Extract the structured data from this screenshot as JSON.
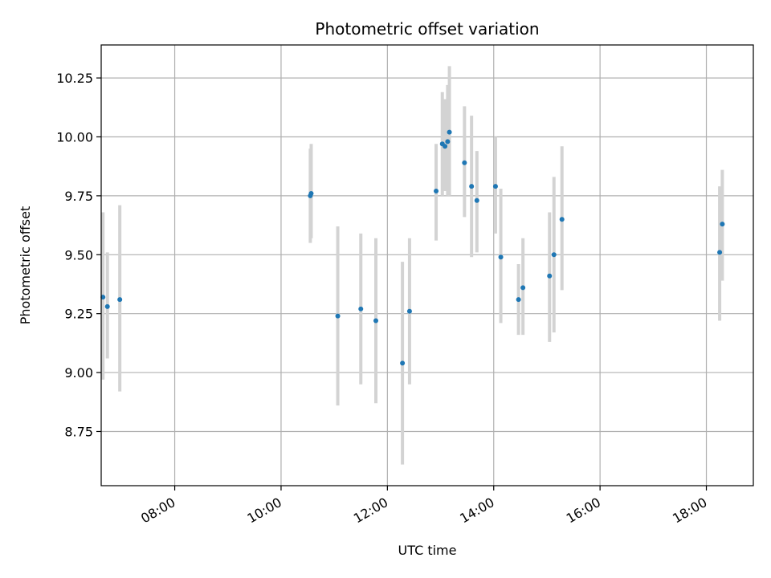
{
  "chart_data": {
    "type": "scatter",
    "title": "Photometric offset variation",
    "xlabel": "UTC time",
    "ylabel": "Photometric offset",
    "x_axis_type": "time",
    "xlim": [
      "06:37",
      "18:53"
    ],
    "ylim": [
      8.52,
      10.39
    ],
    "x_ticks": [
      "08:00",
      "10:00",
      "12:00",
      "14:00",
      "16:00",
      "18:00"
    ],
    "y_ticks": [
      "8.75",
      "9.00",
      "9.25",
      "9.50",
      "9.75",
      "10.00",
      "10.25"
    ],
    "grid": true,
    "legend": "none",
    "colors": {
      "point": "#1f77b4",
      "errorbar": "#d3d3d3",
      "grid": "#b0b0b0",
      "axes": "#000000"
    },
    "points": [
      {
        "x": "06:39",
        "y": 9.32,
        "ylow": 8.97,
        "yhigh": 9.68
      },
      {
        "x": "06:44",
        "y": 9.28,
        "ylow": 9.06,
        "yhigh": 9.51
      },
      {
        "x": "06:58",
        "y": 9.31,
        "ylow": 8.92,
        "yhigh": 9.71
      },
      {
        "x": "10:33",
        "y": 9.75,
        "ylow": 9.55,
        "yhigh": 9.95
      },
      {
        "x": "10:34",
        "y": 9.76,
        "ylow": 9.57,
        "yhigh": 9.97
      },
      {
        "x": "11:04",
        "y": 9.24,
        "ylow": 8.86,
        "yhigh": 9.62
      },
      {
        "x": "11:30",
        "y": 9.27,
        "ylow": 8.95,
        "yhigh": 9.59
      },
      {
        "x": "11:47",
        "y": 9.22,
        "ylow": 8.87,
        "yhigh": 9.57
      },
      {
        "x": "12:17",
        "y": 9.04,
        "ylow": 8.61,
        "yhigh": 9.47
      },
      {
        "x": "12:25",
        "y": 9.26,
        "ylow": 8.95,
        "yhigh": 9.57
      },
      {
        "x": "12:55",
        "y": 9.77,
        "ylow": 9.56,
        "yhigh": 9.97
      },
      {
        "x": "13:02",
        "y": 9.97,
        "ylow": 9.75,
        "yhigh": 10.19
      },
      {
        "x": "13:05",
        "y": 9.96,
        "ylow": 9.77,
        "yhigh": 10.16
      },
      {
        "x": "13:08",
        "y": 9.98,
        "ylow": 9.75,
        "yhigh": 10.22
      },
      {
        "x": "13:10",
        "y": 10.02,
        "ylow": 9.75,
        "yhigh": 10.3
      },
      {
        "x": "13:27",
        "y": 9.89,
        "ylow": 9.66,
        "yhigh": 10.13
      },
      {
        "x": "13:35",
        "y": 9.79,
        "ylow": 9.49,
        "yhigh": 10.09
      },
      {
        "x": "13:41",
        "y": 9.73,
        "ylow": 9.51,
        "yhigh": 9.94
      },
      {
        "x": "14:02",
        "y": 9.79,
        "ylow": 9.59,
        "yhigh": 10.0
      },
      {
        "x": "14:08",
        "y": 9.49,
        "ylow": 9.21,
        "yhigh": 9.78
      },
      {
        "x": "14:28",
        "y": 9.31,
        "ylow": 9.16,
        "yhigh": 9.46
      },
      {
        "x": "14:33",
        "y": 9.36,
        "ylow": 9.16,
        "yhigh": 9.57
      },
      {
        "x": "15:03",
        "y": 9.41,
        "ylow": 9.13,
        "yhigh": 9.68
      },
      {
        "x": "15:08",
        "y": 9.5,
        "ylow": 9.17,
        "yhigh": 9.83
      },
      {
        "x": "15:17",
        "y": 9.65,
        "ylow": 9.35,
        "yhigh": 9.96
      },
      {
        "x": "18:15",
        "y": 9.51,
        "ylow": 9.22,
        "yhigh": 9.79
      },
      {
        "x": "18:18",
        "y": 9.63,
        "ylow": 9.39,
        "yhigh": 9.86
      }
    ]
  }
}
